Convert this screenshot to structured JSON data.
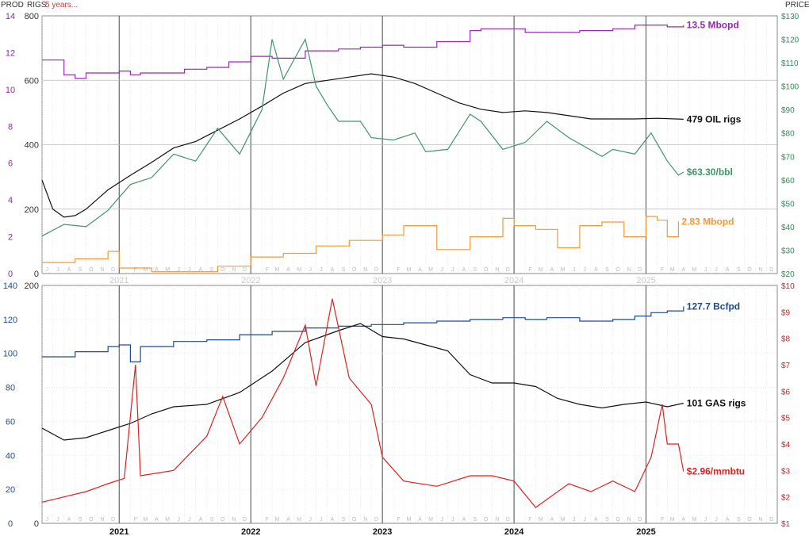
{
  "header": {
    "prod_label": "PROD",
    "rigs_label": "RIGS",
    "period_label": "5 years...",
    "price_label": "PRICE"
  },
  "colors": {
    "production": "#9a27b8",
    "oil_rigs": "#111111",
    "oil_price": "#3f9668",
    "ngl": "#f09a3c",
    "gas_production": "#1e4b8f",
    "gas_rigs": "#111111",
    "gas_price": "#e02020",
    "prod_axis": "#8a2bb0",
    "rigs_axis_bottom": "#1e4b8f",
    "price_axis_top": "#2e8b57",
    "price_axis_bottom": "#d42020"
  },
  "months_label": [
    "J",
    "F",
    "M",
    "A",
    "M",
    "J",
    "J",
    "A",
    "S",
    "O",
    "N",
    "D"
  ],
  "chart_data": [
    {
      "type": "line",
      "x_range": [
        "2020-06-01",
        "2025-12-31"
      ],
      "year_labels": [
        "2021",
        "2022",
        "2023",
        "2024",
        "2025"
      ],
      "y_left_outer": {
        "label": "PROD",
        "ticks": [
          "14",
          "12",
          "10",
          "8",
          "6",
          "4",
          "2",
          "0"
        ],
        "range": [
          0,
          14
        ]
      },
      "y_left_inner": {
        "label": "RIGS",
        "ticks": [
          "800",
          "600",
          "400",
          "200",
          "0"
        ],
        "range": [
          0,
          800
        ]
      },
      "y_right": {
        "label": "PRICE",
        "ticks": [
          "$130",
          "$120",
          "$110",
          "$100",
          "$90",
          "$80",
          "$70",
          "$60",
          "$50",
          "$40",
          "$30",
          "$20"
        ],
        "range": [
          20,
          130
        ]
      },
      "grid": true,
      "series": [
        {
          "name": "13.5 Mbopd",
          "axis": "prod",
          "color": "production",
          "x": [
            "2020-06-01",
            "2020-08-01",
            "2020-09-01",
            "2020-10-01",
            "2020-12-01",
            "2021-01-01",
            "2021-02-01",
            "2021-03-01",
            "2021-05-01",
            "2021-07-01",
            "2021-09-01",
            "2021-11-01",
            "2022-01-01",
            "2022-03-01",
            "2022-06-01",
            "2022-09-01",
            "2022-11-01",
            "2023-01-01",
            "2023-03-01",
            "2023-06-01",
            "2023-09-01",
            "2023-10-01",
            "2023-12-01",
            "2024-01-01",
            "2024-02-01",
            "2024-04-01",
            "2024-07-01",
            "2024-10-01",
            "2024-12-01",
            "2025-01-01",
            "2025-03-01",
            "2025-04-15"
          ],
          "y": [
            11.6,
            10.8,
            10.6,
            10.9,
            10.9,
            11.0,
            10.8,
            10.9,
            10.9,
            11.1,
            11.2,
            11.5,
            11.8,
            11.7,
            12.1,
            12.2,
            12.3,
            12.4,
            12.3,
            12.6,
            13.2,
            13.3,
            13.3,
            13.3,
            13.1,
            13.1,
            13.2,
            13.3,
            13.5,
            13.5,
            13.4,
            13.5
          ]
        },
        {
          "name": "479 OIL rigs",
          "axis": "rigs",
          "color": "oil_rigs",
          "x": [
            "2020-06-01",
            "2020-07-01",
            "2020-08-01",
            "2020-09-01",
            "2020-10-01",
            "2020-12-01",
            "2021-02-01",
            "2021-04-01",
            "2021-06-01",
            "2021-08-01",
            "2021-10-01",
            "2021-12-01",
            "2022-02-01",
            "2022-04-01",
            "2022-06-01",
            "2022-08-01",
            "2022-10-01",
            "2022-12-01",
            "2023-02-01",
            "2023-04-01",
            "2023-06-01",
            "2023-08-01",
            "2023-10-01",
            "2023-12-01",
            "2024-02-01",
            "2024-04-01",
            "2024-06-01",
            "2024-08-01",
            "2024-10-01",
            "2024-12-01",
            "2025-02-01",
            "2025-04-15"
          ],
          "y": [
            290,
            200,
            175,
            180,
            200,
            260,
            305,
            345,
            390,
            410,
            445,
            480,
            520,
            560,
            590,
            600,
            610,
            620,
            610,
            590,
            560,
            530,
            510,
            500,
            505,
            500,
            490,
            480,
            480,
            480,
            482,
            479
          ]
        },
        {
          "name": "$63.30/bbl",
          "axis": "price",
          "color": "oil_price",
          "x": [
            "2020-06-01",
            "2020-08-01",
            "2020-10-01",
            "2020-12-01",
            "2021-02-01",
            "2021-04-01",
            "2021-06-01",
            "2021-08-01",
            "2021-10-01",
            "2021-12-01",
            "2022-02-01",
            "2022-03-01",
            "2022-04-01",
            "2022-06-01",
            "2022-07-01",
            "2022-08-01",
            "2022-09-01",
            "2022-11-01",
            "2022-12-01",
            "2023-02-01",
            "2023-04-01",
            "2023-05-01",
            "2023-07-01",
            "2023-09-01",
            "2023-10-01",
            "2023-12-01",
            "2024-02-01",
            "2024-04-01",
            "2024-06-01",
            "2024-09-01",
            "2024-10-01",
            "2024-12-01",
            "2025-01-15",
            "2025-03-01",
            "2025-04-01",
            "2025-04-15"
          ],
          "y": [
            36,
            41,
            40,
            47,
            58,
            61,
            71,
            68,
            82,
            71,
            90,
            120,
            103,
            120,
            100,
            92,
            85,
            85,
            78,
            77,
            80,
            72,
            73,
            88,
            85,
            73,
            76,
            85,
            78,
            70,
            73,
            71,
            80,
            68,
            62,
            63.3
          ]
        },
        {
          "name": "2.83 Mbopd",
          "axis": "prod",
          "color": "ngl",
          "x": [
            "2020-06-01",
            "2020-09-01",
            "2020-12-01",
            "2021-01-01",
            "2021-04-01",
            "2021-07-01",
            "2021-10-01",
            "2022-01-01",
            "2022-04-01",
            "2022-07-01",
            "2022-10-01",
            "2023-01-01",
            "2023-03-01",
            "2023-06-01",
            "2023-09-01",
            "2023-12-01",
            "2024-01-01",
            "2024-03-01",
            "2024-05-01",
            "2024-07-01",
            "2024-09-01",
            "2024-11-01",
            "2025-01-01",
            "2025-02-01",
            "2025-03-01",
            "2025-04-01"
          ],
          "y": [
            0.6,
            0.8,
            1.2,
            0.3,
            0.1,
            0.1,
            0.4,
            0.9,
            1.1,
            1.5,
            1.8,
            2.1,
            2.6,
            1.3,
            2.0,
            3.0,
            2.6,
            2.4,
            1.4,
            2.6,
            2.8,
            2.0,
            3.1,
            2.9,
            2.0,
            2.83
          ]
        }
      ]
    },
    {
      "type": "line",
      "x_range": [
        "2020-06-01",
        "2025-12-31"
      ],
      "year_labels": [
        "2021",
        "2022",
        "2023",
        "2024",
        "2025"
      ],
      "y_left_outer": {
        "label": "PROD",
        "ticks": [
          "140",
          "120",
          "100",
          "80",
          "60",
          "40",
          "20",
          "0"
        ],
        "range": [
          0,
          140
        ]
      },
      "y_left_inner": {
        "label": "RIGS",
        "ticks": [
          "200",
          "0"
        ],
        "range": [
          0,
          200
        ]
      },
      "y_right": {
        "label": "PRICE",
        "ticks": [
          "$10",
          "$9",
          "$8",
          "$7",
          "$6",
          "$5",
          "$4",
          "$3",
          "$2",
          "$1"
        ],
        "range": [
          1,
          10
        ]
      },
      "grid": true,
      "series": [
        {
          "name": "127.7 Bcfpd",
          "axis": "prod",
          "color": "gas_production",
          "x": [
            "2020-06-01",
            "2020-09-01",
            "2020-12-01",
            "2021-01-01",
            "2021-02-01",
            "2021-03-01",
            "2021-06-01",
            "2021-09-01",
            "2021-12-01",
            "2022-03-01",
            "2022-06-01",
            "2022-09-01",
            "2022-12-01",
            "2023-03-01",
            "2023-06-01",
            "2023-09-01",
            "2023-12-01",
            "2024-02-01",
            "2024-04-01",
            "2024-07-01",
            "2024-10-01",
            "2024-12-01",
            "2025-01-15",
            "2025-03-01",
            "2025-04-15"
          ],
          "y": [
            98,
            101,
            104,
            105,
            95,
            104,
            107,
            108,
            111,
            113,
            115,
            116,
            117,
            118,
            119,
            120,
            121,
            120,
            121,
            119,
            120,
            122,
            124,
            125,
            127.7
          ]
        },
        {
          "name": "101 GAS rigs",
          "axis": "rigs",
          "color": "gas_rigs",
          "x": [
            "2020-06-01",
            "2020-08-01",
            "2020-10-01",
            "2020-12-01",
            "2021-02-01",
            "2021-04-01",
            "2021-06-01",
            "2021-09-01",
            "2021-12-01",
            "2022-03-01",
            "2022-06-01",
            "2022-09-01",
            "2022-11-01",
            "2023-01-01",
            "2023-03-01",
            "2023-05-01",
            "2023-07-01",
            "2023-09-01",
            "2023-11-01",
            "2024-01-01",
            "2024-03-01",
            "2024-05-01",
            "2024-07-01",
            "2024-09-01",
            "2024-11-01",
            "2025-01-01",
            "2025-03-01",
            "2025-04-15"
          ],
          "y": [
            80,
            70,
            72,
            78,
            84,
            92,
            98,
            100,
            110,
            128,
            152,
            162,
            168,
            157,
            155,
            150,
            145,
            125,
            118,
            118,
            115,
            105,
            100,
            97,
            100,
            102,
            98,
            101
          ]
        },
        {
          "name": "$2.96/mmbtu",
          "axis": "price",
          "color": "gas_price",
          "x": [
            "2020-06-01",
            "2020-08-01",
            "2020-10-01",
            "2020-12-01",
            "2021-01-15",
            "2021-02-15",
            "2021-03-01",
            "2021-06-01",
            "2021-09-01",
            "2021-10-15",
            "2021-12-01",
            "2022-02-01",
            "2022-04-01",
            "2022-06-01",
            "2022-07-01",
            "2022-08-15",
            "2022-10-01",
            "2022-12-01",
            "2023-01-01",
            "2023-03-01",
            "2023-06-01",
            "2023-09-01",
            "2023-11-01",
            "2024-01-01",
            "2024-03-01",
            "2024-06-01",
            "2024-08-01",
            "2024-10-01",
            "2024-12-01",
            "2025-01-15",
            "2025-02-15",
            "2025-03-01",
            "2025-04-01",
            "2025-04-15"
          ],
          "y": [
            1.8,
            2.0,
            2.2,
            2.5,
            2.7,
            7.0,
            2.8,
            3.0,
            4.3,
            5.8,
            4.0,
            5.0,
            6.5,
            8.5,
            6.2,
            9.5,
            6.5,
            5.5,
            3.5,
            2.6,
            2.4,
            2.8,
            2.8,
            2.6,
            1.6,
            2.5,
            2.2,
            2.6,
            2.2,
            3.5,
            5.5,
            4.0,
            4.0,
            2.96
          ]
        }
      ]
    }
  ]
}
